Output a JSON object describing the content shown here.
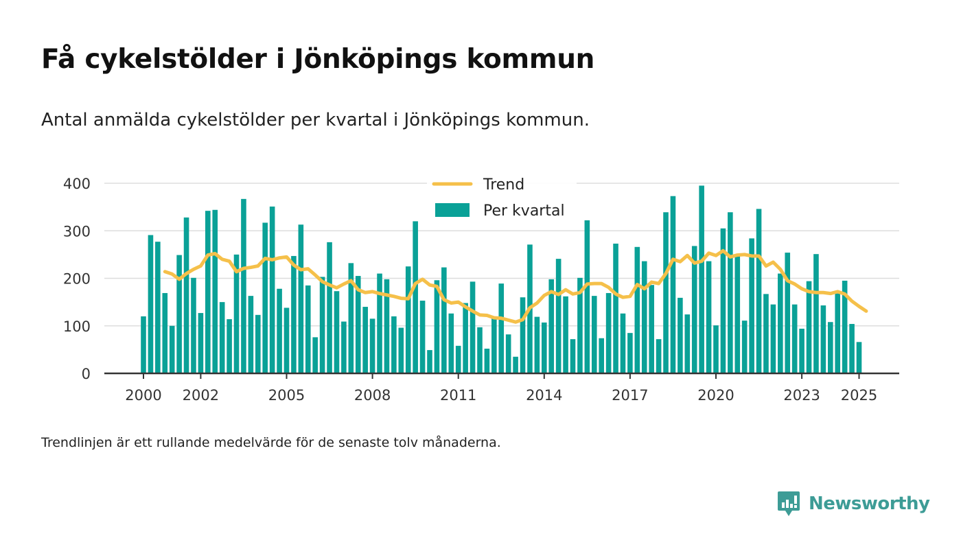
{
  "header": {
    "title": "Få cykelstölder i Jönköpings kommun",
    "subtitle": "Antal anmälda cykelstölder per kvartal i Jönköpings kommun."
  },
  "footnote": "Trendlinjen är ett rullande medelvärde för de senaste tolv månaderna.",
  "brand": {
    "name": "Newsworthy",
    "icon": "newsworthy-logo-icon",
    "color": "#3d9c96"
  },
  "colors": {
    "bars": "#0aa197",
    "trend": "#f5c04a",
    "grid": "#dddddd",
    "axis": "#333333"
  },
  "chart_data": {
    "type": "bar",
    "title": "Få cykelstölder i Jönköpings kommun",
    "subtitle": "Antal anmälda cykelstölder per kvartal i Jönköpings kommun.",
    "ylim": [
      0,
      400
    ],
    "yticks": [
      0,
      100,
      200,
      300,
      400
    ],
    "ytick_labels": [
      "0",
      "100",
      "200",
      "300",
      "400"
    ],
    "xticks": [
      2000,
      2002,
      2005,
      2008,
      2011,
      2014,
      2017,
      2020,
      2023,
      2025
    ],
    "xtick_labels": [
      "2000",
      "2002",
      "2005",
      "2008",
      "2011",
      "2014",
      "2017",
      "2020",
      "2023",
      "2025"
    ],
    "grid": true,
    "legend": {
      "placement": "top-center",
      "entries": [
        {
          "label": "Trend",
          "type": "line"
        },
        {
          "label": "Per kvartal",
          "type": "bar"
        }
      ]
    },
    "series": [
      {
        "name": "Per kvartal",
        "type": "bar",
        "start": {
          "year": 2000,
          "quarter": 1
        },
        "values": [
          120,
          291,
          277,
          169,
          100,
          249,
          328,
          201,
          127,
          342,
          344,
          150,
          114,
          250,
          367,
          163,
          123,
          317,
          351,
          178,
          138,
          247,
          313,
          185,
          76,
          203,
          276,
          173,
          109,
          232,
          205,
          140,
          115,
          210,
          198,
          120,
          96,
          225,
          320,
          153,
          49,
          196,
          223,
          126,
          58,
          148,
          193,
          97,
          52,
          117,
          189,
          82,
          35,
          160,
          271,
          119,
          107,
          198,
          241,
          162,
          72,
          201,
          322,
          163,
          74,
          169,
          273,
          126,
          85,
          266,
          236,
          186,
          72,
          339,
          373,
          159,
          124,
          268,
          395,
          236,
          101,
          305,
          339,
          250,
          111,
          284,
          346,
          167,
          145,
          210,
          254,
          145,
          94,
          194,
          251,
          143,
          108,
          168,
          195,
          104,
          66
        ]
      },
      {
        "name": "Trend",
        "type": "line",
        "start": {
          "year": 2000,
          "quarter": 4
        },
        "values": [
          214,
          209,
          198,
          210,
          219,
          226,
          249,
          252,
          240,
          236,
          214,
          221,
          223,
          226,
          242,
          239,
          243,
          245,
          228,
          218,
          220,
          207,
          193,
          186,
          180,
          188,
          195,
          176,
          170,
          172,
          168,
          165,
          162,
          158,
          157,
          189,
          198,
          186,
          183,
          155,
          148,
          150,
          140,
          131,
          123,
          122,
          117,
          116,
          112,
          108,
          113,
          138,
          148,
          164,
          172,
          166,
          176,
          167,
          170,
          188,
          189,
          189,
          181,
          167,
          160,
          162,
          187,
          178,
          192,
          189,
          210,
          240,
          235,
          248,
          232,
          236,
          253,
          248,
          258,
          245,
          249,
          250,
          247,
          247,
          226,
          234,
          219,
          195,
          188,
          178,
          172,
          170,
          170,
          168,
          172,
          167,
          152,
          141,
          131
        ]
      }
    ]
  }
}
